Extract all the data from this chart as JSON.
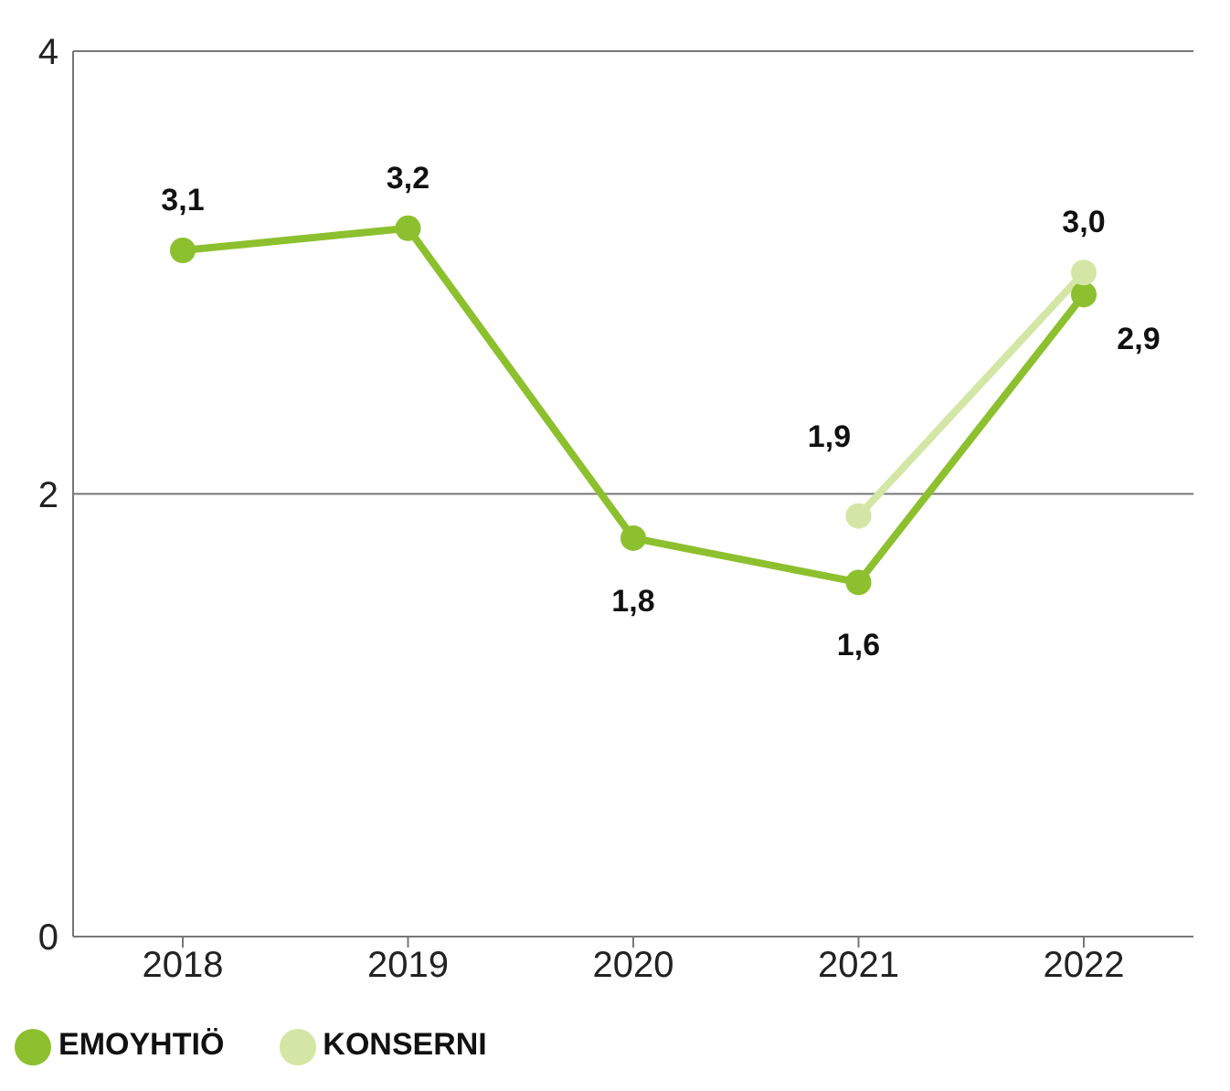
{
  "chart_data": {
    "type": "line",
    "categories": [
      "2018",
      "2019",
      "2020",
      "2021",
      "2022"
    ],
    "series": [
      {
        "name": "EMOYHTIÖ",
        "color": "#8dc02e",
        "values": [
          3.1,
          3.2,
          1.8,
          1.6,
          2.9
        ],
        "value_labels": [
          "3,1",
          "3,2",
          "1,8",
          "1,6",
          "2,9"
        ]
      },
      {
        "name": "KONSERNI",
        "color": "#d4e6a5",
        "values": [
          null,
          null,
          null,
          1.9,
          3.0
        ],
        "value_labels": [
          null,
          null,
          null,
          "1,9",
          "3,0"
        ]
      }
    ],
    "ylim": [
      0,
      4
    ],
    "yticks": [
      0,
      2,
      4
    ],
    "grid": "y",
    "legend": "bottom left",
    "marker": "circle",
    "line_style": "solid"
  }
}
